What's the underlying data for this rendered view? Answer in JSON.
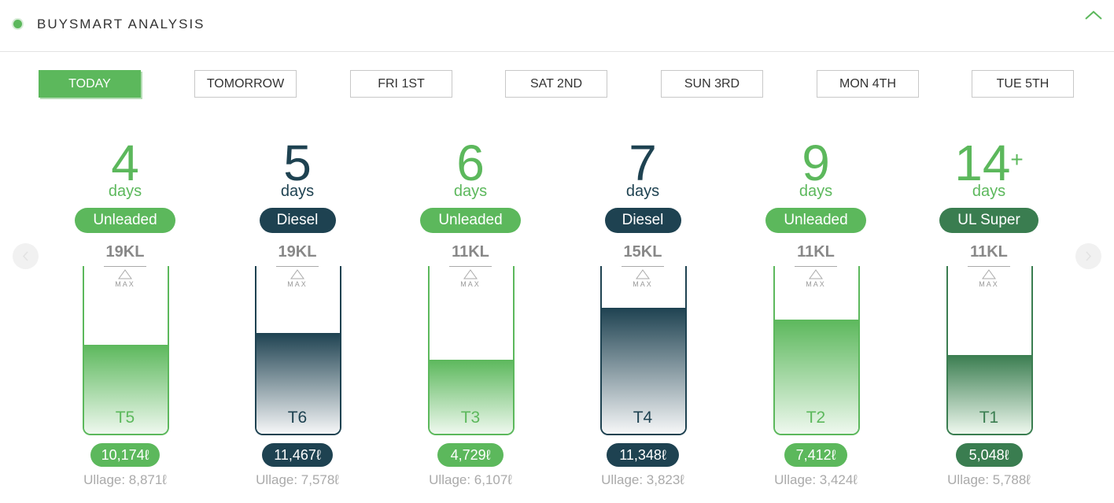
{
  "header": {
    "title": "BUYSMART ANALYSIS",
    "collapse_icon": "chevron-up-icon"
  },
  "colors": {
    "green": "#5cb85c",
    "dark": "#1e4251",
    "ul_super": "#3a7d50",
    "accent": "#5cb85c"
  },
  "tabs": [
    {
      "label": "TODAY",
      "active": true
    },
    {
      "label": "TOMORROW",
      "active": false
    },
    {
      "label": "FRI 1ST",
      "active": false
    },
    {
      "label": "SAT 2ND",
      "active": false
    },
    {
      "label": "SUN 3RD",
      "active": false
    },
    {
      "label": "MON 4TH",
      "active": false
    },
    {
      "label": "TUE 5TH",
      "active": false
    }
  ],
  "max_label": "MAX",
  "tanks": [
    {
      "days": "4",
      "plus": "",
      "days_label": "days",
      "fuel": "Unleaded",
      "capacity": "19KL",
      "tank": "T5",
      "volume": "10,174ℓ",
      "ullage": "Ullage: 8,871ℓ",
      "fill_level": 0.53,
      "color": "green"
    },
    {
      "days": "5",
      "plus": "",
      "days_label": "days",
      "fuel": "Diesel",
      "capacity": "19KL",
      "tank": "T6",
      "volume": "11,467ℓ",
      "ullage": "Ullage: 7,578ℓ",
      "fill_level": 0.6,
      "color": "dark"
    },
    {
      "days": "6",
      "plus": "",
      "days_label": "days",
      "fuel": "Unleaded",
      "capacity": "11KL",
      "tank": "T3",
      "volume": "4,729ℓ",
      "ullage": "Ullage: 6,107ℓ",
      "fill_level": 0.44,
      "color": "green"
    },
    {
      "days": "7",
      "plus": "",
      "days_label": "days",
      "fuel": "Diesel",
      "capacity": "15KL",
      "tank": "T4",
      "volume": "11,348ℓ",
      "ullage": "Ullage: 3,823ℓ",
      "fill_level": 0.75,
      "color": "dark"
    },
    {
      "days": "9",
      "plus": "",
      "days_label": "days",
      "fuel": "Unleaded",
      "capacity": "11KL",
      "tank": "T2",
      "volume": "7,412ℓ",
      "ullage": "Ullage: 3,424ℓ",
      "fill_level": 0.68,
      "color": "green"
    },
    {
      "days": "14",
      "plus": "+",
      "days_label": "days",
      "fuel": "UL Super",
      "capacity": "11KL",
      "tank": "T1",
      "volume": "5,048ℓ",
      "ullage": "Ullage: 5,788ℓ",
      "fill_level": 0.47,
      "color": "ul_super"
    }
  ]
}
